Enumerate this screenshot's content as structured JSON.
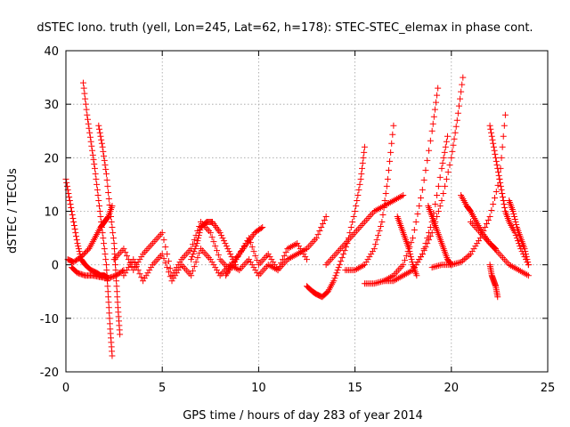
{
  "chart_data": {
    "type": "scatter",
    "title": "dSTEC Iono. truth (yell, Lon=245, Lat=62, h=178): STEC-STEC_elemax in phase cont.",
    "xlabel": "GPS time / hours of day 283 of year 2014",
    "ylabel": "dSTEC  / TECUs",
    "xlim": [
      0,
      25
    ],
    "ylim": [
      -20,
      40
    ],
    "xticks": [
      0,
      5,
      10,
      15,
      20,
      25
    ],
    "yticks": [
      -20,
      -10,
      0,
      10,
      20,
      30,
      40
    ],
    "grid": true,
    "marker": "+",
    "color": "#ff0000",
    "series": [
      {
        "x": [
          0.0,
          0.2,
          0.4,
          0.6,
          0.8,
          1.0,
          1.3,
          1.6,
          1.8,
          2.0,
          2.2
        ],
        "y": [
          16,
          12,
          8,
          4,
          1,
          0,
          -1,
          -1.5,
          -2,
          -2,
          -2.5
        ]
      },
      {
        "x": [
          0.1,
          0.4,
          0.8,
          1.2,
          1.5,
          1.8,
          2.0,
          2.2,
          2.4
        ],
        "y": [
          1,
          0.5,
          1.5,
          3,
          5,
          7,
          8,
          9,
          11
        ]
      },
      {
        "x": [
          0.9,
          1.1,
          1.3,
          1.5,
          1.7,
          1.9,
          2.1,
          2.2,
          2.3,
          2.4
        ],
        "y": [
          34,
          28,
          23,
          18,
          12,
          6,
          0,
          -6,
          -12,
          -17
        ]
      },
      {
        "x": [
          1.7,
          1.9,
          2.1,
          2.3,
          2.5,
          2.6,
          2.7,
          2.8
        ],
        "y": [
          26,
          22,
          17,
          10,
          4,
          -2,
          -8,
          -13
        ]
      },
      {
        "x": [
          0.3,
          0.6,
          1.0,
          1.4,
          1.8,
          2.2,
          2.6,
          3.0
        ],
        "y": [
          -0.5,
          -1.5,
          -2,
          -2,
          -2.3,
          -2.5,
          -2,
          -1
        ]
      },
      {
        "x": [
          2.5,
          3.0,
          3.5,
          4.0,
          4.5,
          5.0,
          5.5,
          6.0,
          6.5,
          7.0,
          7.5,
          8.0,
          8.5,
          9.0,
          9.5,
          10.0,
          10.5,
          11.0,
          11.5,
          12.0,
          12.5
        ],
        "y": [
          1,
          3,
          -1,
          2,
          4,
          6,
          -2,
          1,
          3,
          8,
          6,
          1,
          -1,
          2,
          5,
          0,
          2,
          -1,
          3,
          4,
          1
        ]
      },
      {
        "x": [
          3.0,
          3.5,
          4.0,
          4.5,
          5.0,
          5.5,
          6.0,
          6.5,
          7.0,
          7.5,
          8.0,
          8.5,
          9.0,
          9.5,
          10.0,
          10.5,
          11.0,
          11.5,
          12.0,
          12.5,
          13.0,
          13.5
        ],
        "y": [
          -2,
          1,
          -3,
          0,
          2,
          -3,
          0,
          -2,
          3,
          1,
          -2,
          0,
          -1,
          1,
          -2,
          0,
          -1,
          1,
          2,
          3,
          5,
          9
        ]
      },
      {
        "x": [
          6.5,
          6.8,
          7.0,
          7.3,
          7.6,
          8.0,
          8.4,
          8.8
        ],
        "y": [
          1,
          4,
          7,
          8,
          8,
          6,
          3,
          0
        ]
      },
      {
        "x": [
          8.3,
          8.6,
          9.0,
          9.4,
          9.8,
          10.2
        ],
        "y": [
          -2,
          0,
          2,
          4,
          6,
          7
        ]
      },
      {
        "x": [
          12.5,
          12.8,
          13.0,
          13.3,
          13.6,
          13.9,
          14.2,
          14.6,
          15.0,
          15.3,
          15.5
        ],
        "y": [
          -4,
          -5,
          -5.5,
          -6,
          -5,
          -3,
          0,
          4,
          10,
          16,
          22
        ]
      },
      {
        "x": [
          13.5,
          14.0,
          14.5,
          15.0,
          15.5,
          16.0,
          16.5,
          17.0,
          17.5
        ],
        "y": [
          0,
          2,
          4,
          6,
          8,
          10,
          11,
          12,
          13
        ]
      },
      {
        "x": [
          14.5,
          15.0,
          15.5,
          16.0,
          16.4,
          16.7,
          17.0
        ],
        "y": [
          -1,
          -1,
          0,
          3,
          8,
          16,
          26
        ]
      },
      {
        "x": [
          15.5,
          16.0,
          16.5,
          17.0,
          17.5,
          18.0,
          18.5,
          19.0,
          19.3
        ],
        "y": [
          -3.5,
          -3.5,
          -3,
          -2,
          0,
          5,
          14,
          25,
          33
        ]
      },
      {
        "x": [
          16.5,
          17.0,
          17.5,
          18.0,
          18.5,
          19.0,
          19.5,
          19.8
        ],
        "y": [
          -3,
          -3,
          -2,
          -1,
          2,
          8,
          18,
          24
        ]
      },
      {
        "x": [
          17.2,
          17.4,
          17.6,
          17.8,
          18.0,
          18.2
        ],
        "y": [
          9,
          7,
          5,
          3,
          0,
          -2
        ]
      },
      {
        "x": [
          18.0,
          18.5,
          19.0,
          19.5,
          20.0,
          20.3,
          20.6
        ],
        "y": [
          -1,
          2,
          6,
          12,
          20,
          27,
          35
        ]
      },
      {
        "x": [
          18.8,
          19.0,
          19.2,
          19.4,
          19.6,
          19.8,
          20.0
        ],
        "y": [
          11,
          9,
          7,
          5,
          3,
          1,
          0
        ]
      },
      {
        "x": [
          19.0,
          19.5,
          20.0,
          20.5,
          21.0,
          21.5,
          22.0,
          22.5,
          22.8
        ],
        "y": [
          -0.5,
          0,
          0,
          0.5,
          2,
          5,
          9,
          16,
          28
        ]
      },
      {
        "x": [
          20.5,
          20.8,
          21.0,
          21.3,
          21.6,
          22.0,
          22.3
        ],
        "y": [
          13,
          11,
          10,
          8,
          6,
          4,
          3
        ]
      },
      {
        "x": [
          21.0,
          21.5,
          22.0,
          22.5,
          23.0,
          23.5,
          24.0
        ],
        "y": [
          8,
          6,
          4,
          2,
          0,
          -1,
          -2
        ]
      },
      {
        "x": [
          22.0,
          22.2,
          22.4,
          22.6,
          22.8,
          23.0,
          23.3,
          23.6,
          24.0
        ],
        "y": [
          26,
          22,
          18,
          14,
          10,
          8,
          6,
          3,
          0
        ]
      },
      {
        "x": [
          22.0,
          22.1,
          22.2,
          22.3,
          22.4
        ],
        "y": [
          0,
          -2,
          -3,
          -4,
          -6
        ]
      },
      {
        "x": [
          23.0,
          23.2,
          23.4,
          23.6,
          23.8,
          24.0
        ],
        "y": [
          12,
          10,
          7,
          5,
          3,
          0
        ]
      }
    ]
  }
}
